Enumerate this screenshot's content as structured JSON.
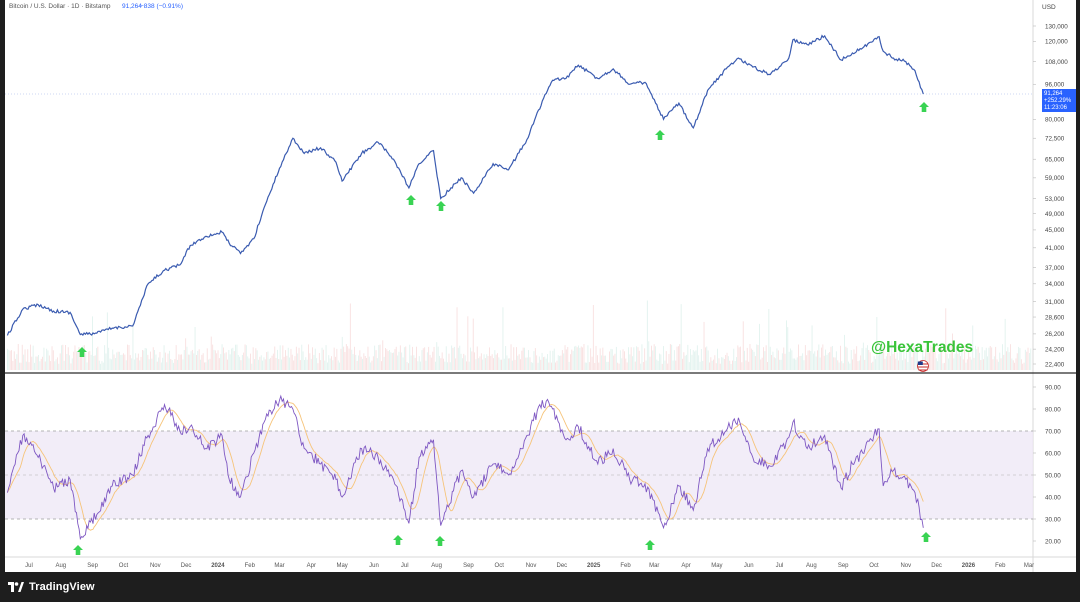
{
  "header": {
    "symbol": "Bitcoin / U.S. Dollar · 1D · Bitstamp",
    "price": "91,264",
    "change": "−838 (−0.91%)"
  },
  "price_axis": {
    "currency": "USD",
    "ticks": [
      "130,000",
      "120,000",
      "108,000",
      "96,000",
      "80,000",
      "72,500",
      "65,000",
      "59,000",
      "53,000",
      "49,000",
      "45,000",
      "41,000",
      "37,000",
      "34,000",
      "31,000",
      "28,600",
      "26,200",
      "24,200",
      "22,400"
    ],
    "last_price_label": "91,264",
    "last_change_label": "+252.29%",
    "countdown_label": "11:23:06"
  },
  "rsi_axis": {
    "ticks": [
      "90.00",
      "80.00",
      "70.00",
      "60.00",
      "50.00",
      "40.00",
      "30.00",
      "20.00"
    ]
  },
  "time_axis": {
    "labels": [
      "Jul",
      "Aug",
      "Sep",
      "Oct",
      "Nov",
      "Dec",
      "2024",
      "Feb",
      "Mar",
      "Apr",
      "May",
      "Jun",
      "Jul",
      "Aug",
      "Sep",
      "Oct",
      "Nov",
      "Dec",
      "2025",
      "Feb",
      "Mar",
      "Apr",
      "May",
      "Jun",
      "Jul",
      "Aug",
      "Sep",
      "Oct",
      "Nov",
      "Dec",
      "2026",
      "Feb",
      "Mar"
    ]
  },
  "watermark": {
    "text": "@HexaTrades"
  },
  "footer": {
    "brand": "TradingView"
  },
  "colors": {
    "price_line": "#3a5bb0",
    "rsi_line": "#7e57c2",
    "rsi_ma": "#f6c47a",
    "rsi_band": "#ede7f6",
    "arrow": "#39d353",
    "watermark": "#3ac43a",
    "last_price_badge": "#2962ff"
  },
  "chart_data": [
    {
      "type": "line",
      "title": "Bitcoin / U.S. Dollar · 1D · Bitstamp",
      "ylabel": "USD",
      "scale": "log",
      "ylim": [
        22400,
        130000
      ],
      "series": [
        {
          "x": [
            "2023-06-10",
            "2023-06-25",
            "2023-07-10",
            "2023-07-25",
            "2023-08-10",
            "2023-08-20",
            "2023-09-05",
            "2023-09-20",
            "2023-10-10",
            "2023-10-25",
            "2023-11-10",
            "2023-11-25",
            "2023-12-05",
            "2023-12-20",
            "2024-01-05",
            "2024-01-12",
            "2024-01-23",
            "2024-02-05",
            "2024-02-15",
            "2024-03-01",
            "2024-03-14",
            "2024-03-25",
            "2024-04-10",
            "2024-04-25",
            "2024-05-01",
            "2024-05-20",
            "2024-06-05",
            "2024-06-20",
            "2024-07-05",
            "2024-07-15",
            "2024-07-29",
            "2024-08-05",
            "2024-08-25",
            "2024-09-06",
            "2024-09-25",
            "2024-10-10",
            "2024-10-28",
            "2024-11-12",
            "2024-11-22",
            "2024-12-05",
            "2024-12-17",
            "2025-01-05",
            "2025-01-20",
            "2025-02-05",
            "2025-02-20",
            "2025-03-10",
            "2025-03-25",
            "2025-04-08",
            "2025-04-22",
            "2025-05-10",
            "2025-05-22",
            "2025-06-05",
            "2025-06-22",
            "2025-07-10",
            "2025-07-14",
            "2025-07-28",
            "2025-08-14",
            "2025-08-30",
            "2025-09-10",
            "2025-09-20",
            "2025-10-06",
            "2025-10-10",
            "2025-10-20",
            "2025-11-01",
            "2025-11-10",
            "2025-11-18"
          ],
          "y": [
            26000,
            29800,
            30500,
            29500,
            29300,
            26100,
            26300,
            27000,
            27300,
            34000,
            36500,
            37500,
            41500,
            43500,
            44500,
            42000,
            39800,
            43000,
            50500,
            62000,
            72500,
            67000,
            69000,
            64000,
            58000,
            67000,
            71000,
            65000,
            56000,
            63500,
            68000,
            53000,
            59000,
            54500,
            63500,
            61500,
            72000,
            88000,
            98000,
            99000,
            106000,
            99000,
            104000,
            96000,
            97000,
            80000,
            87000,
            76500,
            93000,
            104000,
            110000,
            105000,
            101000,
            110000,
            121000,
            118000,
            123500,
            109000,
            113000,
            116000,
            123000,
            114000,
            110000,
            108000,
            103000,
            91264
          ]
        }
      ]
    },
    {
      "type": "line",
      "title": "",
      "ylabel": "",
      "ylim": [
        15,
        95
      ],
      "bands": {
        "upper": 70,
        "middle": 50,
        "lower": 30
      },
      "series": [
        {
          "x": [
            "2023-06-10",
            "2023-06-25",
            "2023-07-10",
            "2023-07-25",
            "2023-08-10",
            "2023-08-20",
            "2023-09-05",
            "2023-09-20",
            "2023-10-10",
            "2023-10-25",
            "2023-11-10",
            "2023-11-25",
            "2023-12-05",
            "2023-12-20",
            "2024-01-05",
            "2024-01-12",
            "2024-01-23",
            "2024-02-05",
            "2024-02-15",
            "2024-03-01",
            "2024-03-14",
            "2024-03-25",
            "2024-04-10",
            "2024-04-25",
            "2024-05-01",
            "2024-05-20",
            "2024-06-05",
            "2024-06-20",
            "2024-07-05",
            "2024-07-15",
            "2024-07-29",
            "2024-08-05",
            "2024-08-25",
            "2024-09-06",
            "2024-09-25",
            "2024-10-10",
            "2024-10-28",
            "2024-11-12",
            "2024-11-22",
            "2024-12-05",
            "2024-12-17",
            "2025-01-05",
            "2025-01-20",
            "2025-02-05",
            "2025-02-20",
            "2025-03-10",
            "2025-03-25",
            "2025-04-08",
            "2025-04-22",
            "2025-05-10",
            "2025-05-22",
            "2025-06-05",
            "2025-06-22",
            "2025-07-10",
            "2025-07-14",
            "2025-07-28",
            "2025-08-14",
            "2025-08-30",
            "2025-09-10",
            "2025-09-20",
            "2025-10-06",
            "2025-10-10",
            "2025-10-20",
            "2025-11-01",
            "2025-11-10",
            "2025-11-18"
          ],
          "y": [
            42,
            68,
            58,
            44,
            48,
            21,
            32,
            45,
            50,
            68,
            82,
            70,
            72,
            62,
            68,
            48,
            40,
            60,
            74,
            84,
            80,
            62,
            55,
            48,
            40,
            62,
            58,
            48,
            28,
            58,
            66,
            27,
            52,
            40,
            55,
            50,
            68,
            84,
            80,
            66,
            72,
            55,
            62,
            48,
            46,
            26,
            45,
            34,
            62,
            70,
            76,
            58,
            54,
            67,
            74,
            62,
            68,
            44,
            55,
            60,
            71,
            45,
            52,
            48,
            42,
            26
          ]
        }
      ]
    }
  ]
}
